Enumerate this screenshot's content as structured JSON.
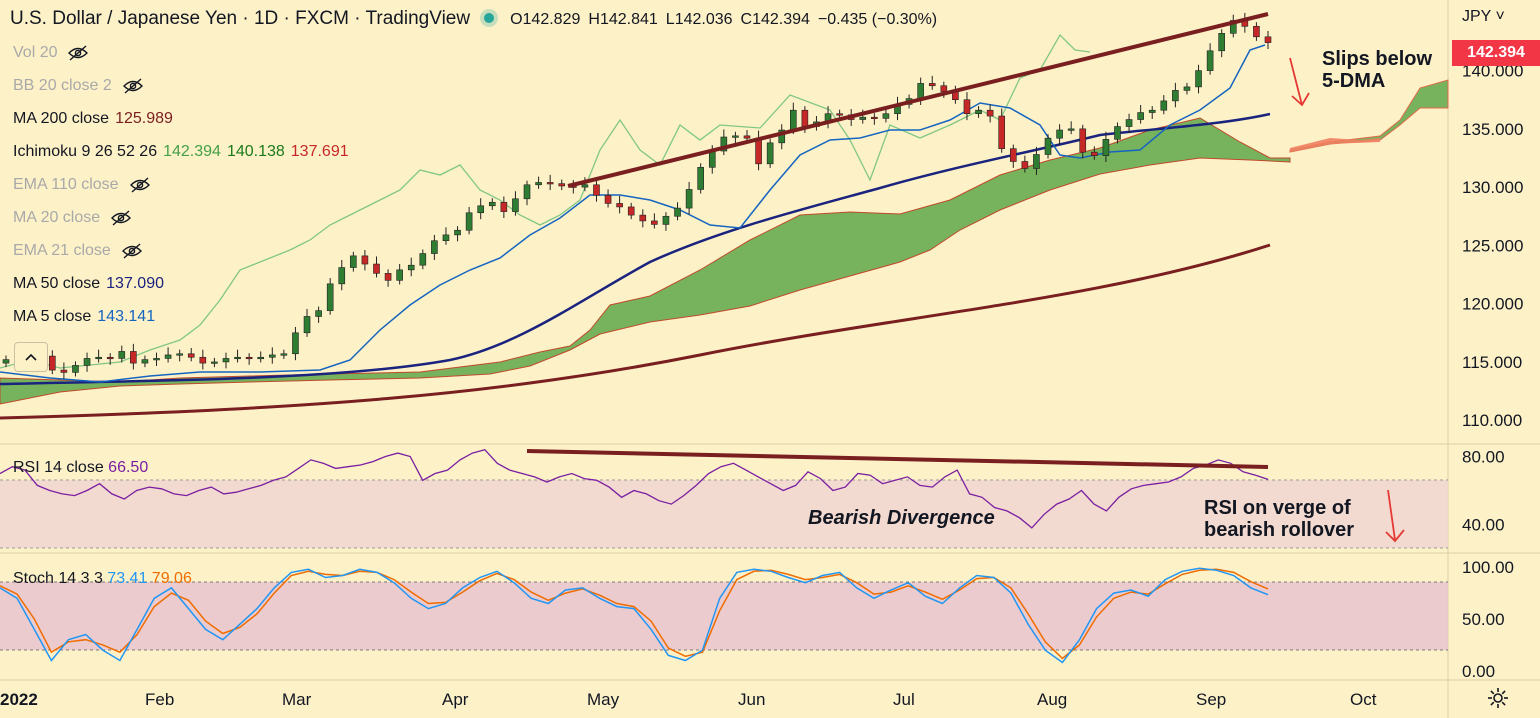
{
  "header": {
    "title": "U.S. Dollar / Japanese Yen · 1D · FXCM · TradingView",
    "ohlc": {
      "o_label": "O",
      "o": "142.829",
      "h_label": "H",
      "h": "142.841",
      "l_label": "L",
      "l": "142.036",
      "c_label": "C",
      "c": "142.394",
      "change": "−0.435 (−0.30%)"
    }
  },
  "currency_label": "JPY",
  "last_price_badge": "142.394",
  "legend": [
    {
      "label": "Vol 20",
      "value": "",
      "hidden": true
    },
    {
      "label": "BB 20 close 2",
      "value": "",
      "hidden": true
    },
    {
      "label": "MA 200 close",
      "value": "125.989",
      "color": "#7a1f1f",
      "hidden": false
    },
    {
      "label": "Ichimoku 9 26 52 26",
      "values": [
        "142.394",
        "140.138",
        "137.691"
      ],
      "colors": [
        "#43a047",
        "#1b7a1b",
        "#c62828"
      ],
      "hidden": false
    },
    {
      "label": "EMA 110 close",
      "value": "",
      "hidden": true
    },
    {
      "label": "MA 20 close",
      "value": "",
      "hidden": true
    },
    {
      "label": "EMA 21 close",
      "value": "",
      "hidden": true
    },
    {
      "label": "MA 50 close",
      "value": "137.090",
      "color": "#1a237e",
      "hidden": false
    },
    {
      "label": "MA 5 close",
      "value": "143.141",
      "color": "#1565c0",
      "hidden": false
    }
  ],
  "rsi_label": {
    "name": "RSI 14 close",
    "value": "66.50",
    "color": "#7b1fa2"
  },
  "stoch_label": {
    "name": "Stoch 14 3 3",
    "k": "73.41",
    "d": "79.06",
    "k_color": "#2196f3",
    "d_color": "#ef6c00"
  },
  "annotations": {
    "slips": [
      "Slips below",
      "5-DMA"
    ],
    "divergence": "Bearish Divergence",
    "rsi_verge": [
      "RSI on verge of",
      "bearish rollover"
    ]
  },
  "icons": [
    "eye-off-icon",
    "chevron-up-icon",
    "gear-icon",
    "chevron-down-icon"
  ],
  "chart_data": [
    {
      "type": "line",
      "title": "U.S. Dollar / Japanese Yen · 1D · FXCM",
      "x_ticks": [
        "2022",
        "Feb",
        "Mar",
        "Apr",
        "May",
        "Jun",
        "Jul",
        "Aug",
        "Sep",
        "Oct"
      ],
      "y_ticks": [
        "110.000",
        "115.000",
        "120.000",
        "125.000",
        "130.000",
        "135.000",
        "140.000"
      ],
      "ylim": [
        108.3,
        145.2
      ],
      "price_close": [
        115.2,
        114.9,
        115.6,
        115.5,
        114.3,
        114.1,
        114.7,
        115.3,
        115.4,
        115.3,
        115.9,
        114.9,
        115.2,
        115.3,
        115.6,
        115.7,
        115.4,
        114.9,
        115.0,
        115.3,
        115.4,
        115.3,
        115.4,
        115.6,
        115.7,
        117.5,
        118.9,
        119.4,
        121.7,
        123.1,
        124.1,
        123.4,
        122.6,
        122.0,
        122.9,
        123.3,
        124.3,
        125.4,
        125.9,
        126.3,
        127.8,
        128.4,
        128.7,
        127.9,
        129.0,
        130.2,
        130.4,
        130.3,
        130.1,
        130.0,
        130.2,
        129.3,
        128.6,
        128.3,
        127.6,
        127.1,
        126.8,
        127.5,
        128.2,
        129.8,
        131.7,
        133.1,
        134.3,
        134.4,
        134.2,
        132.0,
        133.8,
        134.9,
        136.6,
        135.2,
        135.6,
        136.3,
        136.2,
        135.8,
        136.0,
        135.9,
        136.3,
        137.1,
        137.6,
        138.9,
        138.7,
        138.2,
        137.5,
        136.3,
        136.6,
        136.1,
        133.3,
        132.2,
        131.6,
        132.8,
        134.2,
        134.9,
        135.0,
        133.0,
        132.7,
        134.1,
        135.2,
        135.8,
        136.4,
        136.6,
        137.4,
        138.3,
        138.6,
        140.0,
        141.7,
        143.2,
        144.3,
        143.8,
        142.9,
        142.4
      ],
      "series": [
        {
          "name": "MA 5",
          "color": "#1565c0",
          "last": 143.141
        },
        {
          "name": "MA 50",
          "color": "#1a237e",
          "last": 137.09
        },
        {
          "name": "MA 200",
          "color": "#7a1f1f",
          "last": 125.989
        },
        {
          "name": "Ichimoku Lagging Span",
          "color": "#81c784"
        },
        {
          "name": "Ichimoku Cloud",
          "color": "#43a047"
        }
      ],
      "trendline": {
        "color": "#7a1f1f",
        "from": [
          0.37,
          130.8
        ],
        "to": [
          0.93,
          145.5
        ]
      }
    },
    {
      "type": "line",
      "title": "RSI 14 close",
      "y_ticks": [
        "40.00",
        "80.00"
      ],
      "ylim": [
        25,
        85
      ],
      "band": [
        30,
        70
      ],
      "values": [
        70,
        74,
        72,
        63,
        60,
        58,
        57,
        60,
        64,
        58,
        55,
        60,
        62,
        61,
        58,
        57,
        60,
        62,
        58,
        59,
        61,
        63,
        66,
        68,
        73,
        78,
        76,
        73,
        74,
        75,
        77,
        80,
        82,
        80,
        66,
        70,
        72,
        78,
        82,
        84,
        76,
        72,
        70,
        68,
        65,
        68,
        70,
        67,
        66,
        62,
        56,
        60,
        58,
        54,
        52,
        57,
        63,
        70,
        74,
        76,
        72,
        68,
        64,
        60,
        63,
        71,
        67,
        60,
        62,
        70,
        69,
        64,
        66,
        68,
        63,
        62,
        68,
        72,
        58,
        56,
        50,
        48,
        44,
        38,
        46,
        52,
        55,
        60,
        52,
        48,
        56,
        61,
        63,
        64,
        65,
        68,
        73,
        75,
        78,
        76,
        71,
        69,
        66.5
      ],
      "trendline": {
        "color": "#7a1f1f",
        "from": [
          0.35,
          84
        ],
        "to": [
          0.93,
          78
        ]
      },
      "value": 66.5
    },
    {
      "type": "line",
      "title": "Stoch 14 3 3",
      "y_ticks": [
        "0.00",
        "50.00",
        "100.00"
      ],
      "ylim": [
        -5,
        105
      ],
      "band": [
        20,
        80
      ],
      "series": [
        {
          "name": "%K",
          "color": "#2196f3",
          "values": [
            80,
            70,
            40,
            10,
            30,
            35,
            20,
            10,
            40,
            70,
            80,
            60,
            40,
            30,
            45,
            60,
            80,
            95,
            98,
            90,
            92,
            98,
            95,
            85,
            70,
            60,
            65,
            80,
            90,
            96,
            85,
            70,
            65,
            78,
            80,
            70,
            62,
            60,
            40,
            15,
            10,
            20,
            70,
            95,
            98,
            96,
            90,
            85,
            92,
            95,
            80,
            70,
            78,
            85,
            72,
            65,
            80,
            92,
            90,
            75,
            45,
            20,
            8,
            30,
            60,
            75,
            78,
            72,
            88,
            96,
            99,
            97,
            92,
            80,
            73.41
          ]
        },
        {
          "name": "%D",
          "color": "#ef6c00",
          "values": [
            82,
            74,
            50,
            18,
            28,
            30,
            25,
            18,
            35,
            62,
            75,
            68,
            48,
            36,
            42,
            55,
            75,
            92,
            96,
            93,
            92,
            96,
            95,
            88,
            76,
            65,
            66,
            76,
            87,
            94,
            88,
            76,
            68,
            75,
            79,
            73,
            65,
            62,
            48,
            22,
            14,
            18,
            58,
            88,
            96,
            97,
            93,
            88,
            90,
            93,
            85,
            74,
            76,
            82,
            76,
            69,
            78,
            89,
            90,
            80,
            55,
            28,
            12,
            25,
            52,
            70,
            76,
            74,
            84,
            93,
            97,
            98,
            95,
            86,
            79.06
          ]
        }
      ],
      "k": 73.41,
      "d": 79.06
    }
  ]
}
